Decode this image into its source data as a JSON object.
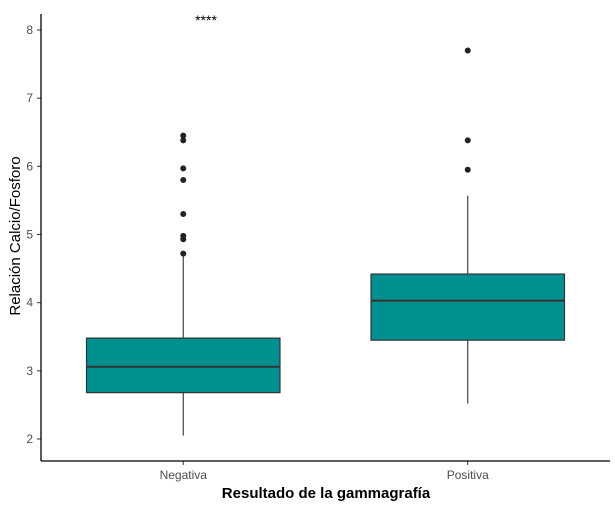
{
  "chart_data": {
    "type": "box",
    "xlabel": "Resultado de la gammagrafía",
    "ylabel": "Relación Calcio/Fosforo",
    "ylim": [
      1.75,
      8.3
    ],
    "yticks": [
      2,
      3,
      4,
      5,
      6,
      7,
      8
    ],
    "grid": false,
    "annotation": "****",
    "box_color": "#009090",
    "categories": [
      "Negativa",
      "Positiva"
    ],
    "boxes": [
      {
        "category": "Negativa",
        "whisker_low": 2.05,
        "q1": 2.68,
        "median": 3.06,
        "q3": 3.48,
        "whisker_high": 4.7,
        "outliers": [
          4.72,
          4.93,
          4.98,
          5.3,
          5.8,
          5.97,
          6.38,
          6.45
        ]
      },
      {
        "category": "Positiva",
        "whisker_low": 2.52,
        "q1": 3.45,
        "median": 4.03,
        "q3": 4.42,
        "whisker_high": 5.57,
        "outliers": [
          5.95,
          6.38,
          7.7
        ]
      }
    ]
  }
}
